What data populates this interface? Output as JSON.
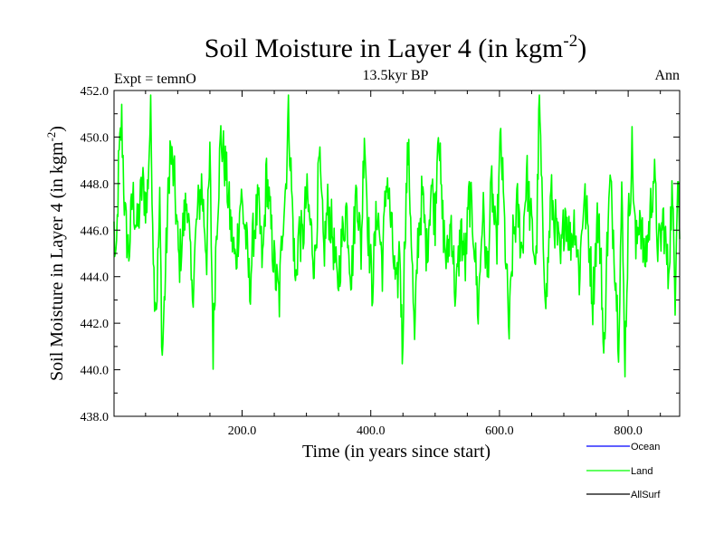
{
  "chart_data": {
    "type": "line",
    "title_main": "Soil Moisture in Layer 4 (in kgm",
    "title_sup": "-2",
    "title_close": ")",
    "subtitle": "13.5kyr BP",
    "left_label": "Expt = temnO",
    "right_label": "Ann",
    "xlabel": "Time (in years since start)",
    "ylabel_main": "Soil Moisture in Layer 4 (in kgm",
    "ylabel_sup": "-2",
    "ylabel_close": ")",
    "xlim": [
      1,
      880
    ],
    "ylim": [
      438,
      452
    ],
    "x_ticks": [
      200,
      400,
      600,
      800
    ],
    "x_tick_labels": [
      "200.0",
      "400.0",
      "600.0",
      "800.0"
    ],
    "y_ticks": [
      438,
      440,
      442,
      444,
      446,
      448,
      450,
      452
    ],
    "y_tick_labels": [
      "438.0",
      "440.0",
      "442.0",
      "444.0",
      "446.0",
      "448.0",
      "450.0",
      "452.0"
    ],
    "legend": [
      {
        "name": "Ocean",
        "color": "#0000ff"
      },
      {
        "name": "Land",
        "color": "#00ff00"
      },
      {
        "name": "AllSurf",
        "color": "#000000"
      }
    ],
    "series": [
      {
        "name": "Land",
        "color": "#00ff00",
        "x_start": 1,
        "x_step": 1,
        "key_points": [
          [
            1,
            446.0
          ],
          [
            4,
            444.0
          ],
          [
            8,
            448.5
          ],
          [
            13,
            450.7
          ],
          [
            18,
            446.5
          ],
          [
            24,
            445.0
          ],
          [
            30,
            447.5
          ],
          [
            37,
            446.0
          ],
          [
            45,
            448.0
          ],
          [
            52,
            447.0
          ],
          [
            58,
            451.1
          ],
          [
            63,
            444.0
          ],
          [
            67,
            442.8
          ],
          [
            72,
            447.0
          ],
          [
            76,
            440.5
          ],
          [
            82,
            445.0
          ],
          [
            88,
            449.5
          ],
          [
            95,
            448.0
          ],
          [
            102,
            444.5
          ],
          [
            108,
            446.0
          ],
          [
            115,
            447.5
          ],
          [
            122,
            443.0
          ],
          [
            130,
            446.5
          ],
          [
            137,
            448.0
          ],
          [
            145,
            445.0
          ],
          [
            150,
            449.0
          ],
          [
            155,
            440.9
          ],
          [
            160,
            446.0
          ],
          [
            167,
            450.0
          ],
          [
            175,
            448.5
          ],
          [
            183,
            446.0
          ],
          [
            190,
            444.5
          ],
          [
            198,
            447.5
          ],
          [
            205,
            446.0
          ],
          [
            212,
            443.5
          ],
          [
            218,
            446.0
          ],
          [
            225,
            447.0
          ],
          [
            232,
            444.5
          ],
          [
            238,
            448.5
          ],
          [
            245,
            446.0
          ],
          [
            252,
            444.0
          ],
          [
            258,
            443.0
          ],
          [
            263,
            446.5
          ],
          [
            268,
            448.0
          ],
          [
            272,
            451.3
          ],
          [
            278,
            447.0
          ],
          [
            283,
            443.5
          ],
          [
            288,
            446.0
          ],
          [
            294,
            445.5
          ],
          [
            300,
            447.5
          ],
          [
            307,
            446.0
          ],
          [
            313,
            444.5
          ],
          [
            320,
            449.0
          ],
          [
            327,
            445.0
          ],
          [
            333,
            447.0
          ],
          [
            340,
            446.0
          ],
          [
            348,
            443.5
          ],
          [
            355,
            445.5
          ],
          [
            362,
            447.0
          ],
          [
            370,
            444.0
          ],
          [
            378,
            448.0
          ],
          [
            385,
            445.0
          ],
          [
            390,
            450.5
          ],
          [
            396,
            446.0
          ],
          [
            402,
            443.5
          ],
          [
            410,
            447.0
          ],
          [
            418,
            444.5
          ],
          [
            425,
            448.5
          ],
          [
            432,
            446.0
          ],
          [
            440,
            443.0
          ],
          [
            445,
            445.5
          ],
          [
            449,
            440.8
          ],
          [
            453,
            446.0
          ],
          [
            458,
            449.5
          ],
          [
            463,
            446.0
          ],
          [
            468,
            440.9
          ],
          [
            473,
            445.5
          ],
          [
            480,
            447.5
          ],
          [
            487,
            445.0
          ],
          [
            494,
            448.0
          ],
          [
            500,
            446.5
          ],
          [
            505,
            451.0
          ],
          [
            510,
            447.0
          ],
          [
            518,
            444.5
          ],
          [
            525,
            446.5
          ],
          [
            532,
            443.0
          ],
          [
            540,
            446.0
          ],
          [
            547,
            444.5
          ],
          [
            553,
            447.5
          ],
          [
            560,
            446.0
          ],
          [
            567,
            442.5
          ],
          [
            574,
            447.0
          ],
          [
            581,
            444.0
          ],
          [
            588,
            448.0
          ],
          [
            595,
            445.0
          ],
          [
            602,
            450.0
          ],
          [
            608,
            446.0
          ],
          [
            615,
            441.5
          ],
          [
            621,
            445.5
          ],
          [
            628,
            447.0
          ],
          [
            635,
            445.0
          ],
          [
            642,
            448.5
          ],
          [
            650,
            446.0
          ],
          [
            657,
            444.5
          ],
          [
            662,
            451.7
          ],
          [
            667,
            446.0
          ],
          [
            673,
            443.0
          ],
          [
            680,
            447.5
          ],
          [
            688,
            446.0
          ],
          [
            695,
            444.5
          ],
          [
            702,
            447.0
          ],
          [
            710,
            445.5
          ],
          [
            717,
            446.5
          ],
          [
            724,
            444.0
          ],
          [
            731,
            447.5
          ],
          [
            738,
            446.0
          ],
          [
            745,
            443.0
          ],
          [
            752,
            446.5
          ],
          [
            758,
            445.0
          ],
          [
            762,
            439.9
          ],
          [
            766,
            444.5
          ],
          [
            772,
            448.0
          ],
          [
            778,
            445.5
          ],
          [
            785,
            441.5
          ],
          [
            790,
            447.5
          ],
          [
            795,
            440.4
          ],
          [
            800,
            446.0
          ],
          [
            806,
            449.5
          ],
          [
            812,
            445.0
          ],
          [
            818,
            447.0
          ],
          [
            825,
            444.5
          ],
          [
            832,
            446.0
          ],
          [
            840,
            448.5
          ],
          [
            847,
            445.0
          ],
          [
            855,
            446.5
          ],
          [
            862,
            444.0
          ],
          [
            868,
            447.5
          ],
          [
            873,
            443.5
          ],
          [
            877,
            449.0
          ],
          [
            880,
            446.0
          ]
        ]
      }
    ]
  }
}
